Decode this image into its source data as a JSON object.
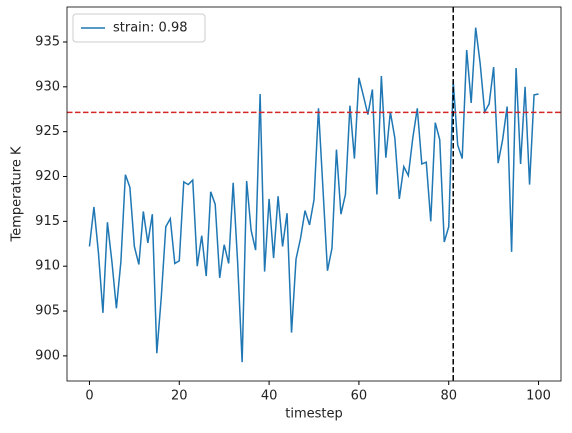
{
  "chart_data": {
    "type": "line",
    "x_label": "timestep",
    "y_label": "Temperature K",
    "x": [
      0,
      1,
      2,
      3,
      4,
      5,
      6,
      7,
      8,
      9,
      10,
      11,
      12,
      13,
      14,
      15,
      16,
      17,
      18,
      19,
      20,
      21,
      22,
      23,
      24,
      25,
      26,
      27,
      28,
      29,
      30,
      31,
      32,
      33,
      34,
      35,
      36,
      37,
      38,
      39,
      40,
      41,
      42,
      43,
      44,
      45,
      46,
      47,
      48,
      49,
      50,
      51,
      52,
      53,
      54,
      55,
      56,
      57,
      58,
      59,
      60,
      61,
      62,
      63,
      64,
      65,
      66,
      67,
      68,
      69,
      70,
      71,
      72,
      73,
      74,
      75,
      76,
      77,
      78,
      79,
      80,
      81,
      82,
      83,
      84,
      85,
      86,
      87,
      88,
      89,
      90,
      91,
      92,
      93,
      94,
      95,
      96,
      97,
      98,
      99,
      100
    ],
    "series": [
      {
        "name": "strain: 0.98",
        "color": "#1f77b4",
        "values": [
          912.2,
          916.6,
          911.5,
          904.8,
          914.9,
          910.5,
          905.3,
          910.5,
          920.2,
          918.8,
          912.2,
          910.2,
          916.1,
          912.6,
          915.8,
          900.3,
          906.6,
          914.4,
          915.3,
          910.3,
          910.6,
          919.4,
          919.1,
          919.6,
          910.0,
          913.4,
          908.9,
          918.3,
          916.9,
          908.7,
          912.4,
          910.3,
          919.3,
          910.4,
          899.3,
          919.5,
          914.0,
          911.8,
          929.2,
          909.4,
          917.5,
          910.9,
          917.8,
          912.2,
          915.9,
          902.6,
          910.8,
          913.1,
          916.2,
          914.6,
          917.4,
          927.6,
          918.6,
          909.5,
          912.0,
          923.0,
          915.8,
          918.0,
          927.9,
          922.0,
          931.0,
          929.0,
          926.9,
          929.7,
          918.0,
          931.2,
          922.1,
          927.2,
          924.3,
          917.5,
          921.1,
          920.1,
          924.3,
          927.6,
          921.4,
          921.6,
          915.0,
          926.0,
          924.1,
          912.7,
          914.4,
          930.6,
          923.5,
          922.0,
          934.1,
          928.2,
          936.6,
          932.6,
          927.2,
          928.1,
          932.2,
          921.5,
          924.1,
          927.8,
          911.6,
          932.1,
          921.4,
          930.0,
          919.1,
          929.1,
          929.2
        ]
      }
    ],
    "hline": {
      "value": 927.15,
      "color": "#d62728"
    },
    "vline": {
      "value": 81,
      "color": "#000000"
    },
    "xlim": [
      -5,
      105
    ],
    "ylim": [
      897.2,
      938.9
    ],
    "xticks": [
      0,
      20,
      40,
      60,
      80,
      100
    ],
    "yticks": [
      900,
      905,
      910,
      915,
      920,
      925,
      930,
      935
    ],
    "legend": "upper left",
    "grid": false
  }
}
